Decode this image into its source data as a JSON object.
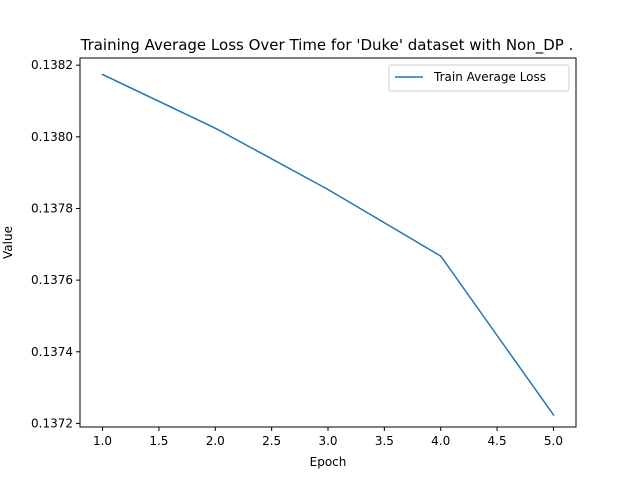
{
  "chart_data": {
    "type": "line",
    "title": "Training Average Loss Over Time for 'Duke' dataset with Non_DP .",
    "xlabel": "Epoch",
    "ylabel": "Value",
    "xlim": [
      0.8,
      5.2
    ],
    "ylim": [
      0.13719,
      0.13822
    ],
    "x_ticks": [
      1.0,
      1.5,
      2.0,
      2.5,
      3.0,
      3.5,
      4.0,
      4.5,
      5.0
    ],
    "x_tick_labels": [
      "1.0",
      "1.5",
      "2.0",
      "2.5",
      "3.0",
      "3.5",
      "4.0",
      "4.5",
      "5.0"
    ],
    "y_ticks": [
      0.1372,
      0.1374,
      0.1376,
      0.1378,
      0.138,
      0.1382
    ],
    "y_tick_labels": [
      "0.1372",
      "0.1374",
      "0.1376",
      "0.1378",
      "0.1380",
      "0.1382"
    ],
    "legend_position": "top-right",
    "grid": false,
    "series": [
      {
        "name": "Train Average Loss",
        "color": "#1f77b4",
        "x": [
          1,
          2,
          3,
          4,
          5
        ],
        "values": [
          0.138174,
          0.138024,
          0.137853,
          0.137667,
          0.137224
        ]
      }
    ]
  }
}
